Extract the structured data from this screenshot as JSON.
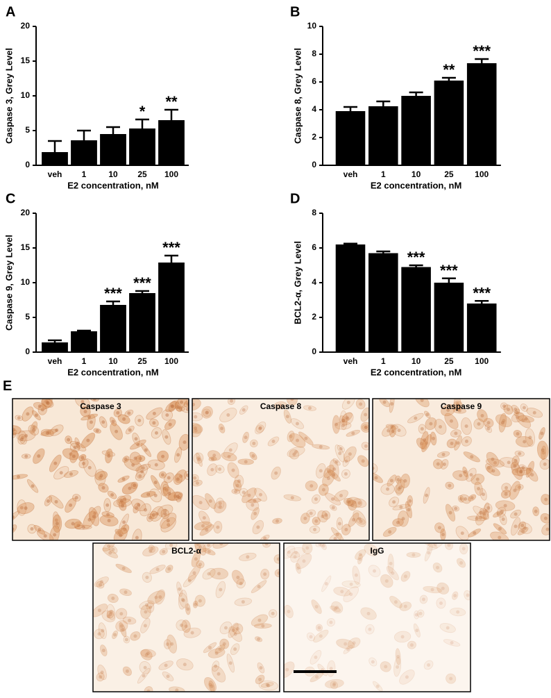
{
  "chart_data": [
    {
      "type": "bar",
      "label": "A",
      "ylabel": "Caspase 3, Grey Level",
      "xlabel": "E2 concentration, nM",
      "color": "#000000",
      "categories": [
        "veh",
        "1",
        "10",
        "25",
        "100"
      ],
      "values": [
        1.9,
        3.6,
        4.5,
        5.3,
        6.5
      ],
      "errors": [
        1.6,
        1.4,
        1.0,
        1.3,
        1.5
      ],
      "annotations": [
        null,
        null,
        null,
        "*",
        "**"
      ],
      "ylim": [
        0,
        20
      ],
      "yticks": [
        0,
        5,
        10,
        15,
        20
      ]
    },
    {
      "type": "bar",
      "label": "B",
      "ylabel": "Caspase 8, Grey Level",
      "xlabel": "E2 concentration, nM",
      "color": "#000000",
      "categories": [
        "veh",
        "1",
        "10",
        "25",
        "100"
      ],
      "values": [
        3.9,
        4.25,
        5.0,
        6.1,
        7.35
      ],
      "errors": [
        0.3,
        0.35,
        0.25,
        0.2,
        0.3
      ],
      "annotations": [
        null,
        null,
        null,
        "**",
        "***"
      ],
      "ylim": [
        0,
        10
      ],
      "yticks": [
        0,
        2,
        4,
        6,
        8,
        10
      ]
    },
    {
      "type": "bar",
      "label": "C",
      "ylabel": "Caspase 9, Grey Level",
      "xlabel": "E2 concentration, nM",
      "color": "#000000",
      "categories": [
        "veh",
        "1",
        "10",
        "25",
        "100"
      ],
      "values": [
        1.4,
        3.0,
        6.8,
        8.5,
        12.9
      ],
      "errors": [
        0.3,
        0.1,
        0.5,
        0.3,
        1.0
      ],
      "annotations": [
        null,
        null,
        "***",
        "***",
        "***"
      ],
      "ylim": [
        0,
        20
      ],
      "yticks": [
        0,
        5,
        10,
        15,
        20
      ]
    },
    {
      "type": "bar",
      "label": "D",
      "ylabel": "BCL2-α, Grey Level",
      "xlabel": "E2 concentration, nM",
      "color": "#000000",
      "categories": [
        "veh",
        "1",
        "10",
        "25",
        "100"
      ],
      "values": [
        6.2,
        5.7,
        4.9,
        4.0,
        2.8
      ],
      "errors": [
        0.05,
        0.1,
        0.1,
        0.25,
        0.15
      ],
      "annotations": [
        null,
        null,
        "***",
        "***",
        "***"
      ],
      "ylim": [
        0,
        8
      ],
      "yticks": [
        0,
        2,
        4,
        6,
        8
      ]
    }
  ],
  "micrographs": {
    "label": "E",
    "panels": [
      "Caspase 3",
      "Caspase 8",
      "Caspase 9",
      "BCL2-α",
      "IgG"
    ]
  }
}
